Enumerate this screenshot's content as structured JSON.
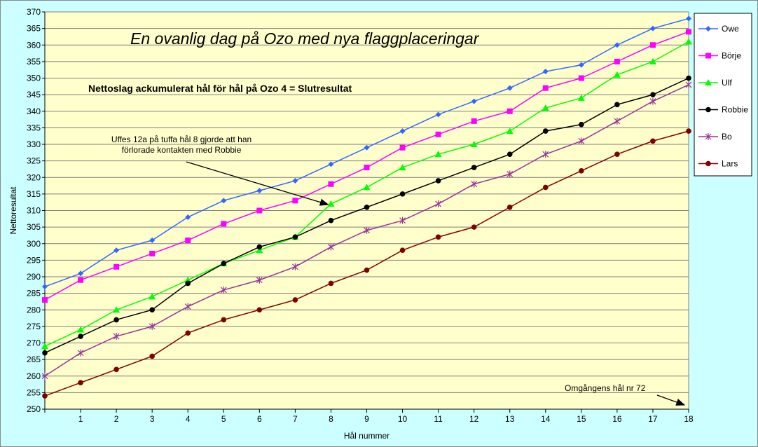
{
  "chart_data": {
    "type": "line",
    "title": "En ovanlig dag på Ozo med nya flaggplaceringar",
    "subtitle": "Nettoslag ackumulerat hål för hål på Ozo 4 = Slutresultat",
    "xlabel": "Hål nummer",
    "ylabel": "Nettoresultat",
    "ylim": [
      250,
      370
    ],
    "ystep": 5,
    "x": [
      0,
      1,
      2,
      3,
      4,
      5,
      6,
      7,
      8,
      9,
      10,
      11,
      12,
      13,
      14,
      15,
      16,
      17,
      18
    ],
    "xtick_labels": [
      "1",
      "2",
      "3",
      "4",
      "5",
      "6",
      "7",
      "8",
      "9",
      "10",
      "11",
      "12",
      "13",
      "14",
      "15",
      "16",
      "17",
      "18"
    ],
    "grid": true,
    "legend_placement": "right",
    "plot_background": "#ffffcc",
    "page_background": "#ccffff",
    "annotations": [
      {
        "text_lines": [
          "Uffes 12a på tuffa hål 8 gjorde att han",
          "förlorade kontakten med Robbie"
        ],
        "arrow_to": [
          8,
          312
        ]
      },
      {
        "text_lines": [
          "Omgångens hål nr 72"
        ],
        "arrow_to": [
          18,
          250
        ]
      }
    ],
    "series": [
      {
        "name": "Owe",
        "color": "#3366ff",
        "marker": "diamond",
        "values": [
          287,
          291,
          298,
          301,
          308,
          313,
          316,
          319,
          324,
          329,
          334,
          339,
          343,
          347,
          352,
          354,
          360,
          365,
          368
        ]
      },
      {
        "name": "Börje",
        "color": "#ff00ff",
        "marker": "square",
        "values": [
          283,
          289,
          293,
          297,
          301,
          306,
          310,
          313,
          318,
          323,
          329,
          333,
          337,
          340,
          347,
          350,
          355,
          360,
          364
        ]
      },
      {
        "name": "Ulf",
        "color": "#00ff00",
        "marker": "triangle",
        "values": [
          269,
          274,
          280,
          284,
          289,
          294,
          298,
          302,
          312,
          317,
          323,
          327,
          330,
          334,
          341,
          344,
          351,
          355,
          361
        ]
      },
      {
        "name": "Robbie",
        "color": "#000000",
        "marker": "circle",
        "values": [
          267,
          272,
          277,
          280,
          288,
          294,
          299,
          302,
          307,
          311,
          315,
          319,
          323,
          327,
          334,
          336,
          342,
          345,
          350
        ]
      },
      {
        "name": "Bo",
        "color": "#993399",
        "marker": "star",
        "values": [
          260,
          267,
          272,
          275,
          281,
          286,
          289,
          293,
          299,
          304,
          307,
          312,
          318,
          321,
          327,
          331,
          337,
          343,
          348
        ]
      },
      {
        "name": "Lars",
        "color": "#800000",
        "marker": "circle",
        "values": [
          254,
          258,
          262,
          266,
          273,
          277,
          280,
          283,
          288,
          292,
          298,
          302,
          305,
          311,
          317,
          322,
          327,
          331,
          334
        ]
      }
    ]
  }
}
